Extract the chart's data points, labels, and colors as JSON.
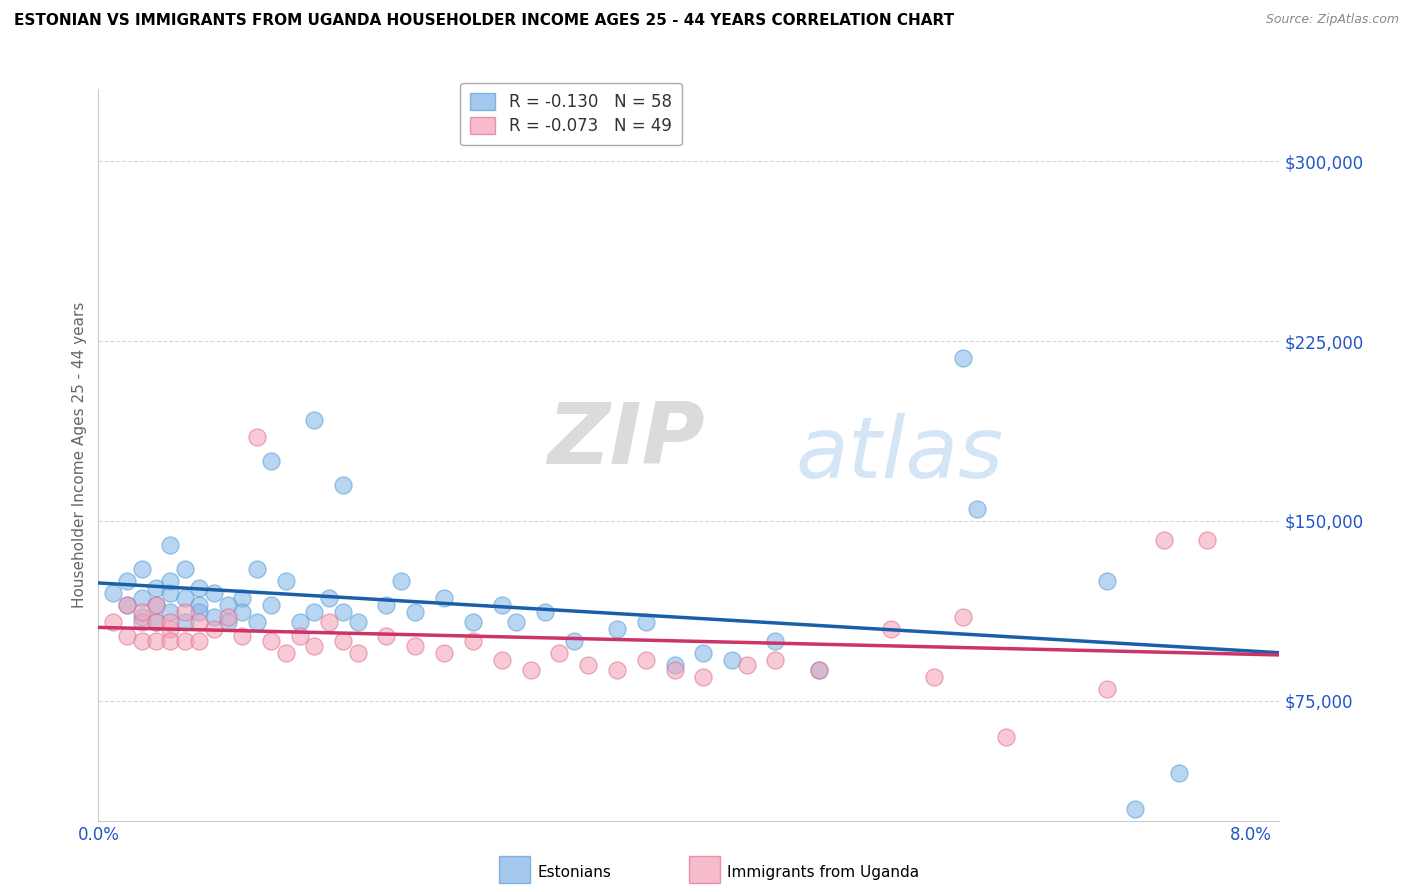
{
  "title": "ESTONIAN VS IMMIGRANTS FROM UGANDA HOUSEHOLDER INCOME AGES 25 - 44 YEARS CORRELATION CHART",
  "source": "Source: ZipAtlas.com",
  "ylabel": "Householder Income Ages 25 - 44 years",
  "xlim": [
    0.0,
    0.082
  ],
  "ylim": [
    25000,
    330000
  ],
  "yticks": [
    75000,
    150000,
    225000,
    300000
  ],
  "ytick_labels": [
    "$75,000",
    "$150,000",
    "$225,000",
    "$300,000"
  ],
  "legend_r1": "R = ",
  "legend_r1val": "-0.130",
  "legend_n1": "N = ",
  "legend_n1val": "58",
  "legend_r2": "R = ",
  "legend_r2val": "-0.073",
  "legend_n2": "N = ",
  "legend_n2val": "49",
  "legend_label1": "Estonians",
  "legend_label2": "Immigrants from Uganda",
  "blue_color": "#7fb3e8",
  "blue_edge": "#5a9fd4",
  "pink_color": "#f4a0b5",
  "pink_edge": "#e07090",
  "blue_line_color": "#1a5fa8",
  "pink_line_color": "#cc3366",
  "watermark_zip": "ZIP",
  "watermark_atlas": "atlas",
  "blue_scatter": [
    [
      0.001,
      120000
    ],
    [
      0.002,
      115000
    ],
    [
      0.002,
      125000
    ],
    [
      0.003,
      118000
    ],
    [
      0.003,
      110000
    ],
    [
      0.003,
      130000
    ],
    [
      0.004,
      122000
    ],
    [
      0.004,
      115000
    ],
    [
      0.004,
      108000
    ],
    [
      0.005,
      120000
    ],
    [
      0.005,
      112000
    ],
    [
      0.005,
      140000
    ],
    [
      0.005,
      125000
    ],
    [
      0.006,
      118000
    ],
    [
      0.006,
      108000
    ],
    [
      0.006,
      130000
    ],
    [
      0.007,
      115000
    ],
    [
      0.007,
      112000
    ],
    [
      0.007,
      122000
    ],
    [
      0.008,
      110000
    ],
    [
      0.008,
      120000
    ],
    [
      0.009,
      115000
    ],
    [
      0.009,
      108000
    ],
    [
      0.01,
      118000
    ],
    [
      0.01,
      112000
    ],
    [
      0.011,
      130000
    ],
    [
      0.011,
      108000
    ],
    [
      0.012,
      175000
    ],
    [
      0.012,
      115000
    ],
    [
      0.013,
      125000
    ],
    [
      0.014,
      108000
    ],
    [
      0.015,
      112000
    ],
    [
      0.015,
      192000
    ],
    [
      0.016,
      118000
    ],
    [
      0.017,
      165000
    ],
    [
      0.017,
      112000
    ],
    [
      0.018,
      108000
    ],
    [
      0.02,
      115000
    ],
    [
      0.021,
      125000
    ],
    [
      0.022,
      112000
    ],
    [
      0.024,
      118000
    ],
    [
      0.026,
      108000
    ],
    [
      0.028,
      115000
    ],
    [
      0.029,
      108000
    ],
    [
      0.031,
      112000
    ],
    [
      0.033,
      100000
    ],
    [
      0.036,
      105000
    ],
    [
      0.038,
      108000
    ],
    [
      0.04,
      90000
    ],
    [
      0.042,
      95000
    ],
    [
      0.044,
      92000
    ],
    [
      0.047,
      100000
    ],
    [
      0.05,
      88000
    ],
    [
      0.06,
      218000
    ],
    [
      0.061,
      155000
    ],
    [
      0.07,
      125000
    ],
    [
      0.072,
      30000
    ],
    [
      0.075,
      45000
    ]
  ],
  "pink_scatter": [
    [
      0.001,
      108000
    ],
    [
      0.002,
      102000
    ],
    [
      0.002,
      115000
    ],
    [
      0.003,
      108000
    ],
    [
      0.003,
      100000
    ],
    [
      0.003,
      112000
    ],
    [
      0.004,
      108000
    ],
    [
      0.004,
      100000
    ],
    [
      0.004,
      115000
    ],
    [
      0.005,
      105000
    ],
    [
      0.005,
      100000
    ],
    [
      0.005,
      108000
    ],
    [
      0.006,
      112000
    ],
    [
      0.006,
      100000
    ],
    [
      0.007,
      108000
    ],
    [
      0.007,
      100000
    ],
    [
      0.008,
      105000
    ],
    [
      0.009,
      110000
    ],
    [
      0.01,
      102000
    ],
    [
      0.011,
      185000
    ],
    [
      0.012,
      100000
    ],
    [
      0.013,
      95000
    ],
    [
      0.014,
      102000
    ],
    [
      0.015,
      98000
    ],
    [
      0.016,
      108000
    ],
    [
      0.017,
      100000
    ],
    [
      0.018,
      95000
    ],
    [
      0.02,
      102000
    ],
    [
      0.022,
      98000
    ],
    [
      0.024,
      95000
    ],
    [
      0.026,
      100000
    ],
    [
      0.028,
      92000
    ],
    [
      0.03,
      88000
    ],
    [
      0.032,
      95000
    ],
    [
      0.034,
      90000
    ],
    [
      0.036,
      88000
    ],
    [
      0.038,
      92000
    ],
    [
      0.04,
      88000
    ],
    [
      0.042,
      85000
    ],
    [
      0.045,
      90000
    ],
    [
      0.047,
      92000
    ],
    [
      0.05,
      88000
    ],
    [
      0.055,
      105000
    ],
    [
      0.058,
      85000
    ],
    [
      0.06,
      110000
    ],
    [
      0.063,
      60000
    ],
    [
      0.07,
      80000
    ],
    [
      0.074,
      142000
    ],
    [
      0.077,
      142000
    ]
  ]
}
